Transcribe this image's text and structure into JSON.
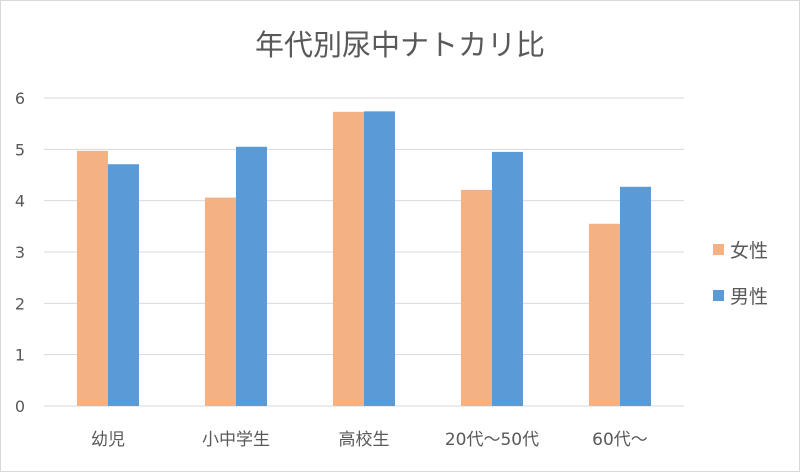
{
  "chart_data": {
    "type": "bar",
    "title": "年代別尿中ナトカリ比",
    "xlabel": "",
    "ylabel": "",
    "categories": [
      "幼児",
      "小中学生",
      "高校生",
      "20代～50代",
      "60代～"
    ],
    "series": [
      {
        "name": "女性",
        "color": "#f4b183",
        "values": [
          4.97,
          4.06,
          5.73,
          4.21,
          3.55
        ]
      },
      {
        "name": "男性",
        "color": "#5b9bd5",
        "values": [
          4.71,
          5.05,
          5.74,
          4.95,
          4.27
        ]
      }
    ],
    "ylim": [
      0,
      6
    ],
    "yticks": [
      "0",
      "1",
      "2",
      "3",
      "4",
      "5",
      "6"
    ],
    "grid": true,
    "legend_position": "right"
  }
}
